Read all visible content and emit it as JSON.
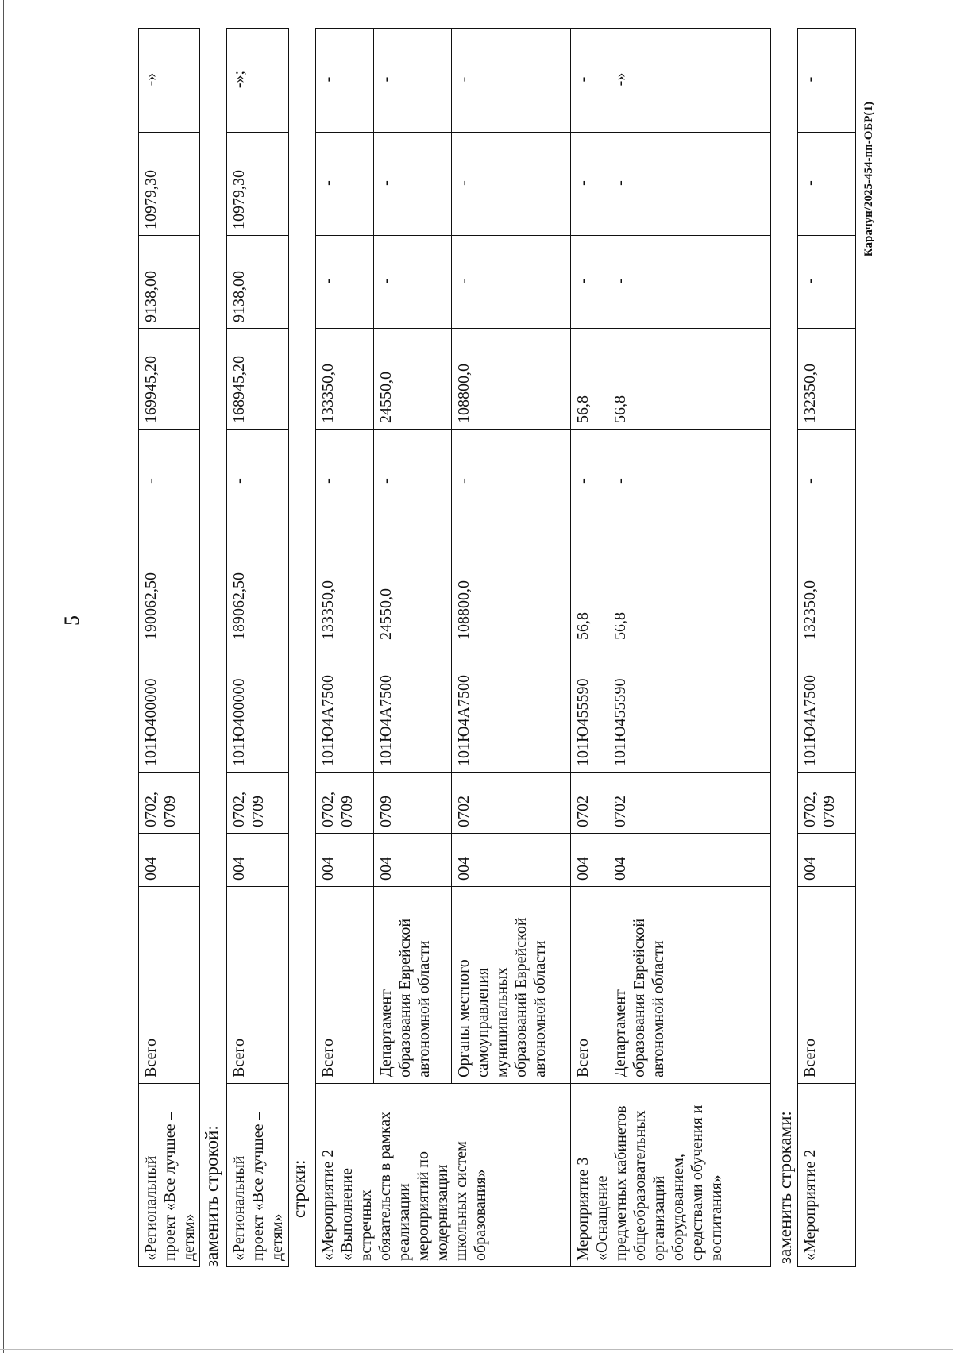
{
  "page_number": "5",
  "labels": {
    "replace_row": "заменить строкой:",
    "rows": "строки:",
    "replace_rows": "заменить строками:"
  },
  "footer": "Карачун/2025-454-пп-ОБР(1)",
  "tables": [
    {
      "rows": [
        [
          "«Региональный\nпроект «Все лучшее –\nдетям»",
          "Всего",
          "004",
          "0702,\n0709",
          "101Ю400000",
          "190062,50",
          "-",
          "169945,20",
          "9138,00",
          "10979,30",
          "-»"
        ]
      ]
    },
    {
      "rows": [
        [
          "«Региональный\nпроект «Все лучшее –\nдетям»",
          "Всего",
          "004",
          "0702,\n0709",
          "101Ю400000",
          "189062,50",
          "-",
          "168945,20",
          "9138,00",
          "10979,30",
          "-»;"
        ]
      ]
    },
    {
      "rows": [
        [
          "«Мероприятие 2\n«Выполнение\nвстречных\nобязательств в рамках\nреализации\nмероприятий по\nмодернизации\nшкольных систем\nобразования»",
          "Всего",
          "004",
          "0702,\n0709",
          "101Ю4А7500",
          "133350,0",
          "-",
          "133350,0",
          "-",
          "-",
          "-"
        ],
        [
          null,
          "Департамент\nобразования Еврейской\nавтономной области",
          "004",
          "0709",
          "101Ю4А7500",
          "24550,0",
          "-",
          "24550,0",
          "-",
          "-",
          "-"
        ],
        [
          null,
          "Органы местного\nсамоуправления\nмуниципальных\nобразований Еврейской\nавтономной области",
          "004",
          "0702",
          "101Ю4А7500",
          "108800,0",
          "-",
          "108800,0",
          "-",
          "-",
          "-"
        ],
        [
          "Мероприятие 3\n«Оснащение\nпредметных кабинетов\nобщеобразовательных\nорганизаций\nоборудованием,\nсредствами обучения и\nвоспитания»",
          "Всего",
          "004",
          "0702",
          "101Ю455590",
          "56,8",
          "-",
          "56,8",
          "-",
          "-",
          "-"
        ],
        [
          null,
          "Департамент\nобразования Еврейской\nавтономной области",
          "004",
          "0702",
          "101Ю455590",
          "56,8",
          "-",
          "56,8",
          "-",
          "-",
          "-»"
        ]
      ]
    },
    {
      "rows": [
        [
          "«Мероприятие 2",
          "Всего",
          "004",
          "0702,\n0709",
          "101Ю4А7500",
          "132350,0",
          "-",
          "132350,0",
          "-",
          "-",
          "-"
        ]
      ]
    }
  ]
}
